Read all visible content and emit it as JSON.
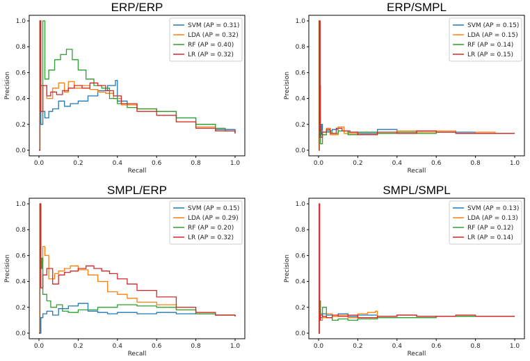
{
  "colors": {
    "SVM": "#1f77b4",
    "LDA": "#ff7f0e",
    "RF": "#2ca02c",
    "LR": "#d62728"
  },
  "chart_data": [
    {
      "type": "line",
      "title": "ERP/ERP",
      "xlabel": "Recall",
      "ylabel": "Precision",
      "xlim": [
        0,
        1
      ],
      "ylim": [
        0,
        1
      ],
      "xticks": [
        "0.0",
        "0.2",
        "0.4",
        "0.6",
        "0.8",
        "1.0"
      ],
      "yticks": [
        "0.0",
        "0.2",
        "0.4",
        "0.6",
        "0.8",
        "1.0"
      ],
      "legend_position": "top-right",
      "series": [
        {
          "name": "SVM",
          "legend": "SVM (AP = 0.31)",
          "x": [
            0,
            0.005,
            0.01,
            0.02,
            0.03,
            0.05,
            0.07,
            0.1,
            0.13,
            0.16,
            0.2,
            0.25,
            0.3,
            0.35,
            0.39,
            0.4,
            0.45,
            0.5,
            0.6,
            0.7,
            0.8,
            0.9,
            1.0
          ],
          "y": [
            0,
            1.0,
            0.2,
            0.3,
            0.25,
            0.3,
            0.32,
            0.38,
            0.34,
            0.36,
            0.38,
            0.42,
            0.46,
            0.5,
            0.54,
            0.38,
            0.35,
            0.32,
            0.3,
            0.25,
            0.2,
            0.16,
            0.13
          ]
        },
        {
          "name": "LDA",
          "legend": "LDA (AP = 0.32)",
          "x": [
            0,
            0.005,
            0.01,
            0.02,
            0.04,
            0.07,
            0.1,
            0.13,
            0.15,
            0.18,
            0.22,
            0.26,
            0.3,
            0.34,
            0.38,
            0.42,
            0.5,
            0.6,
            0.7,
            0.8,
            0.9,
            1.0
          ],
          "y": [
            0,
            1.0,
            0.3,
            0.5,
            0.4,
            0.48,
            0.52,
            0.45,
            0.53,
            0.48,
            0.5,
            0.47,
            0.45,
            0.44,
            0.4,
            0.35,
            0.32,
            0.3,
            0.22,
            0.18,
            0.15,
            0.13
          ]
        },
        {
          "name": "RF",
          "legend": "RF (AP = 0.40)",
          "x": [
            0,
            0.005,
            0.01,
            0.02,
            0.03,
            0.05,
            0.08,
            0.11,
            0.14,
            0.17,
            0.2,
            0.24,
            0.28,
            0.32,
            0.36,
            0.4,
            0.45,
            0.5,
            0.6,
            0.7,
            0.8,
            0.9,
            0.95,
            1.0
          ],
          "y": [
            0,
            1.0,
            0.5,
            1.0,
            0.55,
            0.62,
            0.7,
            0.74,
            0.78,
            0.7,
            0.62,
            0.55,
            0.5,
            0.48,
            0.4,
            0.36,
            0.33,
            0.32,
            0.3,
            0.25,
            0.2,
            0.17,
            0.15,
            0.13
          ]
        },
        {
          "name": "LR",
          "legend": "LR (AP = 0.32)",
          "x": [
            0,
            0.005,
            0.01,
            0.02,
            0.04,
            0.06,
            0.09,
            0.12,
            0.15,
            0.18,
            0.22,
            0.26,
            0.3,
            0.34,
            0.38,
            0.42,
            0.5,
            0.6,
            0.7,
            0.8,
            0.9,
            1.0
          ],
          "y": [
            0,
            1.0,
            0.3,
            0.5,
            0.42,
            0.45,
            0.43,
            0.46,
            0.48,
            0.5,
            0.48,
            0.52,
            0.5,
            0.46,
            0.42,
            0.36,
            0.3,
            0.27,
            0.22,
            0.17,
            0.15,
            0.13
          ]
        }
      ]
    },
    {
      "type": "line",
      "title": "ERP/SMPL",
      "xlabel": "Recall",
      "ylabel": "Precision",
      "xlim": [
        0,
        1
      ],
      "ylim": [
        0,
        1
      ],
      "xticks": [
        "0.0",
        "0.2",
        "0.4",
        "0.6",
        "0.8",
        "1.0"
      ],
      "yticks": [
        "0.0",
        "0.2",
        "0.4",
        "0.6",
        "0.8",
        "1.0"
      ],
      "legend_position": "top-right",
      "series": [
        {
          "name": "SVM",
          "legend": "SVM (AP = 0.15)",
          "x": [
            0,
            0.005,
            0.01,
            0.015,
            0.02,
            0.04,
            0.07,
            0.1,
            0.15,
            0.2,
            0.3,
            0.4,
            0.5,
            0.6,
            0.7,
            0.8,
            0.9,
            1.0
          ],
          "y": [
            0.1,
            0.28,
            0.12,
            0.2,
            0.14,
            0.15,
            0.16,
            0.15,
            0.14,
            0.13,
            0.16,
            0.14,
            0.15,
            0.14,
            0.14,
            0.13,
            0.13,
            0.13
          ]
        },
        {
          "name": "LDA",
          "legend": "LDA (AP = 0.15)",
          "x": [
            0,
            0.003,
            0.006,
            0.01,
            0.02,
            0.04,
            0.06,
            0.1,
            0.13,
            0.2,
            0.3,
            0.4,
            0.5,
            0.6,
            0.7,
            0.8,
            0.9,
            1.0
          ],
          "y": [
            0,
            1.0,
            0.2,
            0.15,
            0.12,
            0.17,
            0.12,
            0.18,
            0.13,
            0.14,
            0.13,
            0.15,
            0.14,
            0.15,
            0.13,
            0.14,
            0.13,
            0.13
          ]
        },
        {
          "name": "RF",
          "legend": "RF (AP = 0.14)",
          "x": [
            0,
            0.003,
            0.006,
            0.01,
            0.02,
            0.04,
            0.07,
            0.1,
            0.15,
            0.2,
            0.3,
            0.4,
            0.5,
            0.6,
            0.7,
            0.8,
            0.9,
            1.0
          ],
          "y": [
            0,
            1.0,
            0.5,
            0.05,
            0.12,
            0.14,
            0.13,
            0.15,
            0.12,
            0.14,
            0.13,
            0.14,
            0.13,
            0.14,
            0.13,
            0.13,
            0.13,
            0.13
          ]
        },
        {
          "name": "LR",
          "legend": "LR (AP = 0.15)",
          "x": [
            0,
            0.004,
            0.008,
            0.012,
            0.02,
            0.04,
            0.06,
            0.09,
            0.12,
            0.16,
            0.2,
            0.3,
            0.4,
            0.5,
            0.6,
            0.7,
            0.8,
            0.9,
            1.0
          ],
          "y": [
            0,
            1.0,
            0.15,
            0.1,
            0.14,
            0.16,
            0.13,
            0.17,
            0.15,
            0.14,
            0.12,
            0.14,
            0.13,
            0.15,
            0.14,
            0.13,
            0.13,
            0.13,
            0.13
          ]
        }
      ]
    },
    {
      "type": "line",
      "title": "SMPL/ERP",
      "xlabel": "Recall",
      "ylabel": "Precision",
      "xlim": [
        0,
        1
      ],
      "ylim": [
        0,
        1
      ],
      "xticks": [
        "0.0",
        "0.2",
        "0.4",
        "0.6",
        "0.8",
        "1.0"
      ],
      "yticks": [
        "0.0",
        "0.2",
        "0.4",
        "0.6",
        "0.8",
        "1.0"
      ],
      "legend_position": "top-right",
      "series": [
        {
          "name": "SVM",
          "legend": "SVM (AP = 0.15)",
          "x": [
            0,
            0.01,
            0.02,
            0.04,
            0.07,
            0.1,
            0.15,
            0.2,
            0.25,
            0.3,
            0.35,
            0.4,
            0.5,
            0.6,
            0.7,
            0.8,
            0.9,
            1.0
          ],
          "y": [
            0,
            0.12,
            0.15,
            0.17,
            0.14,
            0.19,
            0.21,
            0.23,
            0.17,
            0.16,
            0.15,
            0.16,
            0.15,
            0.16,
            0.15,
            0.15,
            0.14,
            0.13
          ]
        },
        {
          "name": "LDA",
          "legend": "LDA (AP = 0.29)",
          "x": [
            0,
            0.005,
            0.01,
            0.02,
            0.03,
            0.05,
            0.08,
            0.1,
            0.13,
            0.16,
            0.2,
            0.25,
            0.3,
            0.35,
            0.4,
            0.45,
            0.5,
            0.6,
            0.7,
            0.8,
            0.9,
            1.0
          ],
          "y": [
            0,
            1.0,
            0.55,
            0.67,
            0.6,
            0.42,
            0.46,
            0.48,
            0.5,
            0.52,
            0.49,
            0.45,
            0.4,
            0.32,
            0.3,
            0.27,
            0.24,
            0.22,
            0.18,
            0.15,
            0.14,
            0.13
          ]
        },
        {
          "name": "RF",
          "legend": "RF (AP = 0.20)",
          "x": [
            0,
            0.005,
            0.01,
            0.015,
            0.02,
            0.04,
            0.06,
            0.09,
            0.12,
            0.15,
            0.2,
            0.3,
            0.4,
            0.5,
            0.6,
            0.7,
            0.8,
            0.9,
            1.0
          ],
          "y": [
            0,
            1.0,
            0.5,
            0.58,
            0.3,
            0.25,
            0.2,
            0.22,
            0.17,
            0.16,
            0.18,
            0.2,
            0.22,
            0.21,
            0.2,
            0.18,
            0.15,
            0.14,
            0.13
          ]
        },
        {
          "name": "LR",
          "legend": "LR (AP = 0.32)",
          "x": [
            0,
            0.005,
            0.01,
            0.02,
            0.04,
            0.07,
            0.1,
            0.13,
            0.16,
            0.2,
            0.24,
            0.28,
            0.32,
            0.36,
            0.4,
            0.45,
            0.5,
            0.6,
            0.7,
            0.8,
            0.9,
            1.0
          ],
          "y": [
            0,
            1.0,
            0.35,
            0.45,
            0.5,
            0.38,
            0.45,
            0.47,
            0.48,
            0.5,
            0.52,
            0.5,
            0.48,
            0.46,
            0.42,
            0.38,
            0.33,
            0.28,
            0.2,
            0.16,
            0.14,
            0.13
          ]
        }
      ]
    },
    {
      "type": "line",
      "title": "SMPL/SMPL",
      "xlabel": "Recall",
      "ylabel": "Precision",
      "xlim": [
        0,
        1
      ],
      "ylim": [
        0,
        1
      ],
      "xticks": [
        "0.0",
        "0.2",
        "0.4",
        "0.6",
        "0.8",
        "1.0"
      ],
      "yticks": [
        "0.0",
        "0.2",
        "0.4",
        "0.6",
        "0.8",
        "1.0"
      ],
      "legend_position": "top-right",
      "series": [
        {
          "name": "SVM",
          "legend": "SVM (AP = 0.13)",
          "x": [
            0,
            0.005,
            0.01,
            0.02,
            0.04,
            0.07,
            0.1,
            0.15,
            0.2,
            0.3,
            0.4,
            0.5,
            0.6,
            0.7,
            0.8,
            0.9,
            1.0
          ],
          "y": [
            0,
            0.18,
            0.12,
            0.15,
            0.14,
            0.13,
            0.15,
            0.13,
            0.14,
            0.13,
            0.14,
            0.13,
            0.13,
            0.13,
            0.13,
            0.13,
            0.13
          ]
        },
        {
          "name": "LDA",
          "legend": "LDA (AP = 0.13)",
          "x": [
            0,
            0.005,
            0.01,
            0.02,
            0.04,
            0.07,
            0.1,
            0.15,
            0.2,
            0.25,
            0.29,
            0.3,
            0.4,
            0.5,
            0.6,
            0.7,
            0.8,
            0.9,
            1.0
          ],
          "y": [
            0,
            0.15,
            0.1,
            0.12,
            0.15,
            0.13,
            0.14,
            0.12,
            0.15,
            0.16,
            0.17,
            0.13,
            0.14,
            0.13,
            0.13,
            0.14,
            0.13,
            0.13,
            0.13
          ]
        },
        {
          "name": "RF",
          "legend": "RF (AP = 0.12)",
          "x": [
            0,
            0.005,
            0.01,
            0.02,
            0.04,
            0.07,
            0.1,
            0.15,
            0.2,
            0.3,
            0.4,
            0.5,
            0.6,
            0.7,
            0.8,
            0.9,
            1.0
          ],
          "y": [
            0,
            0.25,
            0.15,
            0.2,
            0.12,
            0.1,
            0.11,
            0.1,
            0.11,
            0.12,
            0.12,
            0.12,
            0.13,
            0.13,
            0.13,
            0.13,
            0.13
          ]
        },
        {
          "name": "LR",
          "legend": "LR (AP = 0.14)",
          "x": [
            0,
            0.003,
            0.006,
            0.01,
            0.02,
            0.04,
            0.07,
            0.1,
            0.15,
            0.2,
            0.3,
            0.4,
            0.5,
            0.6,
            0.7,
            0.8,
            0.9,
            1.0
          ],
          "y": [
            0,
            1.0,
            0.1,
            0.14,
            0.13,
            0.12,
            0.14,
            0.13,
            0.14,
            0.12,
            0.13,
            0.14,
            0.13,
            0.13,
            0.14,
            0.13,
            0.13,
            0.13
          ]
        }
      ]
    }
  ]
}
